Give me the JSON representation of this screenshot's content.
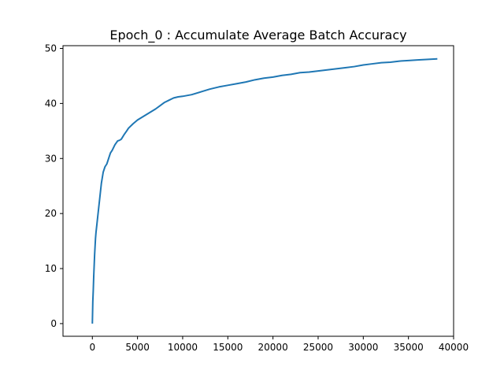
{
  "chart_data": {
    "type": "line",
    "title": "Epoch_0 : Accumulate Average Batch Accuracy",
    "xlabel": "",
    "ylabel": "",
    "xlim": [
      -3250,
      40000
    ],
    "ylim": [
      -2.3,
      50.5
    ],
    "xticks": [
      0,
      5000,
      10000,
      15000,
      20000,
      25000,
      30000,
      35000,
      40000
    ],
    "yticks": [
      0,
      10,
      20,
      30,
      40,
      50
    ],
    "grid": false,
    "legend": "none",
    "series": [
      {
        "color": "#1f77b4",
        "x": [
          0,
          50,
          100,
          150,
          200,
          250,
          300,
          350,
          400,
          500,
          600,
          700,
          800,
          900,
          1000,
          1200,
          1400,
          1600,
          1800,
          2000,
          2200,
          2500,
          2800,
          3000,
          3200,
          3500,
          3800,
          4000,
          4500,
          5000,
          5500,
          6000,
          6500,
          7000,
          7500,
          8000,
          8500,
          9000,
          9500,
          10000,
          11000,
          12000,
          13000,
          14000,
          15000,
          16000,
          17000,
          18000,
          19000,
          20000,
          21000,
          22000,
          23000,
          24000,
          25000,
          26000,
          27000,
          28000,
          29000,
          30000,
          31000,
          32000,
          33000,
          34000,
          35000,
          36000,
          37000,
          38200
        ],
        "y": [
          0,
          4,
          6,
          8.5,
          10.5,
          12.5,
          14,
          15.5,
          16.5,
          18,
          19.5,
          21,
          22.5,
          24,
          25.5,
          27.5,
          28.5,
          29,
          30,
          31,
          31.5,
          32.5,
          33.2,
          33.3,
          33.5,
          34.3,
          35,
          35.5,
          36.3,
          37,
          37.5,
          38,
          38.5,
          39,
          39.6,
          40.2,
          40.6,
          41,
          41.2,
          41.3,
          41.6,
          42.1,
          42.6,
          43,
          43.3,
          43.6,
          43.9,
          44.3,
          44.6,
          44.8,
          45.1,
          45.3,
          45.6,
          45.7,
          45.9,
          46.1,
          46.3,
          46.5,
          46.7,
          47,
          47.2,
          47.4,
          47.5,
          47.7,
          47.8,
          47.9,
          48.0,
          48.1
        ]
      }
    ]
  }
}
